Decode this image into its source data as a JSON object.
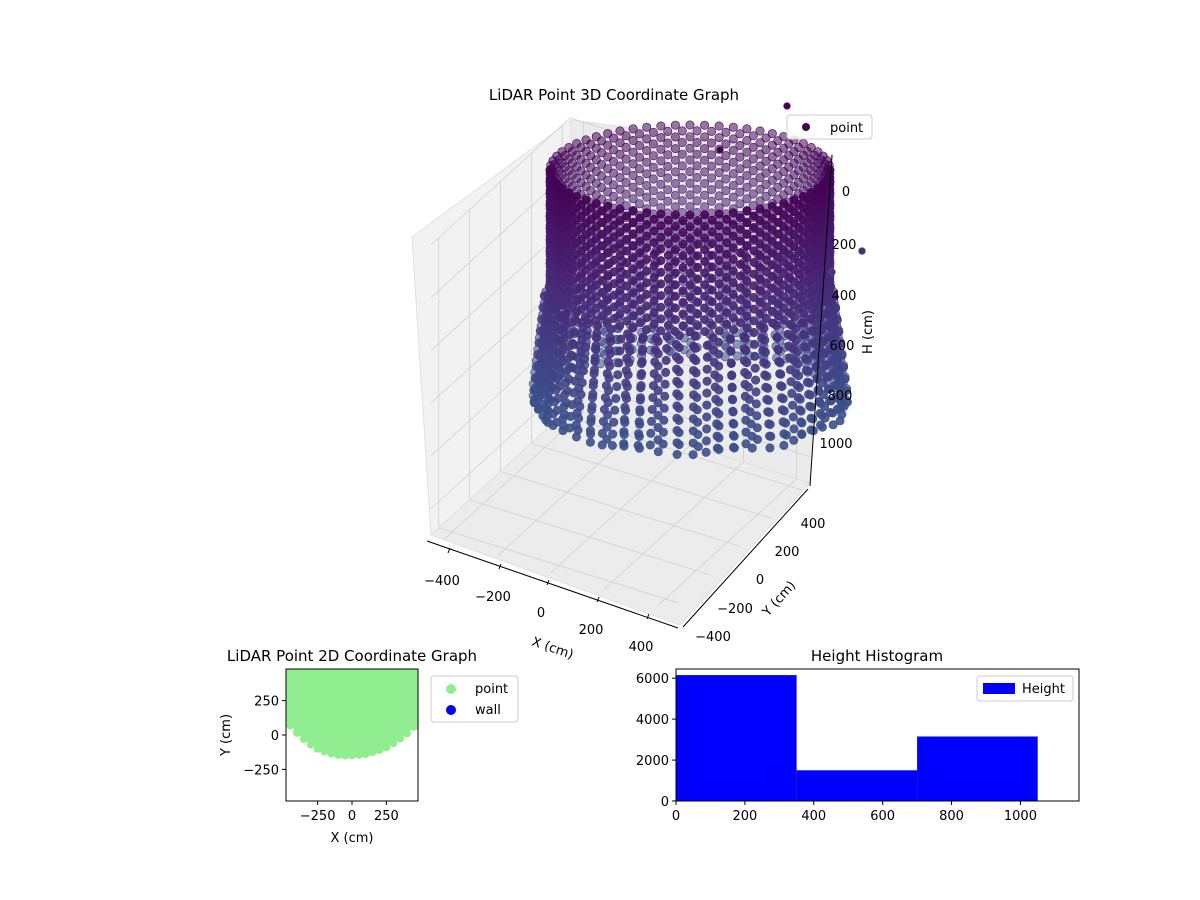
{
  "chart_data": [
    {
      "type": "scatter3d",
      "title": "LiDAR Point 3D Coordinate Graph",
      "xlabel": "X (cm)",
      "ylabel": "Y (cm)",
      "zlabel": "H (cm)",
      "x_ticks": [
        -400,
        -200,
        0,
        200,
        400
      ],
      "y_ticks": [
        -400,
        -200,
        0,
        200,
        400
      ],
      "z_ticks": [
        0,
        200,
        400,
        600,
        800,
        1000
      ],
      "xlim": [
        -450,
        450
      ],
      "ylim": [
        -450,
        450
      ],
      "zlim": [
        1100,
        0
      ],
      "z_inverted": true,
      "shape": "cylindrical wall of points, radius about 430 cm, height 0 to about 1050 cm",
      "radius": 430,
      "height_range": [
        0,
        1050
      ],
      "colormap": "viridis",
      "legend": {
        "entries": [
          "point"
        ],
        "placement": "top-right"
      },
      "series": [
        {
          "name": "point",
          "color": "#440154"
        }
      ]
    },
    {
      "type": "scatter",
      "title": "LiDAR Point 2D Coordinate Graph",
      "xlabel": "X (cm)",
      "ylabel": "Y (cm)",
      "x_ticks": [
        -250,
        0,
        250
      ],
      "y_ticks": [
        250,
        0,
        -250
      ],
      "xlim": [
        -480,
        480
      ],
      "ylim": [
        -480,
        480
      ],
      "legend": {
        "entries": [
          "point",
          "wall"
        ],
        "placement": "right-outside"
      },
      "series": [
        {
          "name": "point",
          "color": "#90ee90"
        },
        {
          "name": "wall",
          "color": "#0000ff"
        }
      ],
      "point_region_lower_boundary": [
        [
          -480,
          120
        ],
        [
          -450,
          70
        ],
        [
          -400,
          15
        ],
        [
          -350,
          -30
        ],
        [
          -300,
          -70
        ],
        [
          -250,
          -100
        ],
        [
          -200,
          -120
        ],
        [
          -150,
          -135
        ],
        [
          -100,
          -145
        ],
        [
          -50,
          -150
        ],
        [
          0,
          -148
        ],
        [
          50,
          -145
        ],
        [
          100,
          -138
        ],
        [
          150,
          -125
        ],
        [
          200,
          -110
        ],
        [
          250,
          -90
        ],
        [
          300,
          -60
        ],
        [
          350,
          -25
        ],
        [
          400,
          10
        ],
        [
          450,
          60
        ],
        [
          480,
          100
        ]
      ]
    },
    {
      "type": "bar",
      "title": "Height Histogram",
      "x_ticks": [
        0,
        200,
        400,
        600,
        800,
        1000
      ],
      "y_ticks": [
        0,
        2000,
        4000,
        6000
      ],
      "xlim": [
        0,
        1170
      ],
      "ylim": [
        0,
        6450
      ],
      "bin_edges": [
        0,
        350,
        700,
        1050
      ],
      "values": [
        6150,
        1500,
        3150
      ],
      "legend": {
        "entries": [
          "Height"
        ],
        "placement": "top-right"
      },
      "series": [
        {
          "name": "Height",
          "color": "#0000ff"
        }
      ]
    }
  ]
}
